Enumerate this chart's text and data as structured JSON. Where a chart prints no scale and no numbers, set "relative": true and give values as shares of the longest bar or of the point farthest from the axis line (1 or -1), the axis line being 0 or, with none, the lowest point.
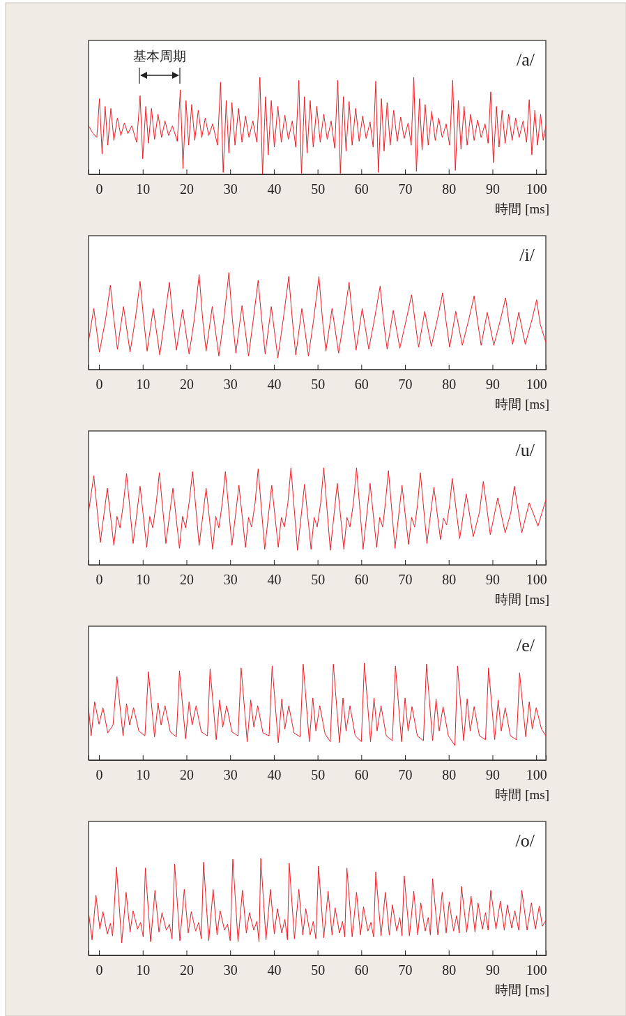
{
  "chart_data": [
    {
      "type": "line",
      "title": "/a/",
      "xlabel": "時間 [ms]",
      "relative": true,
      "color": "#ee1c25",
      "xlim": [
        -2.4,
        102.2
      ],
      "xticks": [
        0,
        10,
        20,
        30,
        40,
        50,
        60,
        70,
        80,
        90,
        100
      ],
      "annotations": [
        "基本周期"
      ],
      "x": [
        -2.4,
        -1.5,
        -0.5,
        0.1,
        0.7,
        1.4,
        2.0,
        2.7,
        3.4,
        4.2,
        5.0,
        5.8,
        6.6,
        7.5,
        8.6,
        9.4,
        10.0,
        10.7,
        11.3,
        12.0,
        12.7,
        13.5,
        14.3,
        15.1,
        15.9,
        16.8,
        17.9,
        18.6,
        19.2,
        19.9,
        20.5,
        21.2,
        21.9,
        22.7,
        23.5,
        24.3,
        25.1,
        26.0,
        27.1,
        27.8,
        28.4,
        29.1,
        29.7,
        30.4,
        31.1,
        31.9,
        32.7,
        33.5,
        34.3,
        35.2,
        36.1,
        36.8,
        37.4,
        38.1,
        38.7,
        39.4,
        40.1,
        40.9,
        41.7,
        42.5,
        43.3,
        44.2,
        45.0,
        45.7,
        46.3,
        47.0,
        47.6,
        48.3,
        49.0,
        49.8,
        50.6,
        51.4,
        52.2,
        53.1,
        53.9,
        54.6,
        55.2,
        55.9,
        56.5,
        57.2,
        57.9,
        58.7,
        59.5,
        60.3,
        61.1,
        62.0,
        62.7,
        63.3,
        63.9,
        64.6,
        65.2,
        65.9,
        66.6,
        67.4,
        68.2,
        69.0,
        69.8,
        70.7,
        71.4,
        72.0,
        72.6,
        73.3,
        73.9,
        74.6,
        75.3,
        76.1,
        76.9,
        77.7,
        78.5,
        79.4,
        80.2,
        80.9,
        81.5,
        82.2,
        82.8,
        83.5,
        84.2,
        85.0,
        85.8,
        86.6,
        87.4,
        88.3,
        89.0,
        89.6,
        90.2,
        90.9,
        91.5,
        92.2,
        92.9,
        93.7,
        94.5,
        95.3,
        96.1,
        97.0,
        97.8,
        98.4,
        99.0,
        99.7,
        100.3,
        101.0,
        101.6,
        102.2
      ],
      "values": [
        0.5,
        0.43,
        0.38,
        0.78,
        0.21,
        0.7,
        0.3,
        0.68,
        0.35,
        0.58,
        0.4,
        0.53,
        0.42,
        0.5,
        0.33,
        0.81,
        0.16,
        0.7,
        0.32,
        0.68,
        0.36,
        0.62,
        0.38,
        0.55,
        0.4,
        0.5,
        0.34,
        0.87,
        0.06,
        0.76,
        0.3,
        0.72,
        0.35,
        0.66,
        0.38,
        0.58,
        0.4,
        0.52,
        0.3,
        0.95,
        0.02,
        0.76,
        0.22,
        0.74,
        0.3,
        0.68,
        0.33,
        0.6,
        0.38,
        0.55,
        0.33,
        1,
        0,
        0.8,
        0.2,
        0.76,
        0.28,
        0.7,
        0.33,
        0.61,
        0.36,
        0.55,
        0.28,
        0.97,
        0.01,
        0.8,
        0.22,
        0.76,
        0.28,
        0.7,
        0.33,
        0.62,
        0.36,
        0.55,
        0.27,
        0.97,
        0.01,
        0.8,
        0.24,
        0.75,
        0.3,
        0.68,
        0.34,
        0.6,
        0.37,
        0.54,
        0.28,
        0.96,
        0.02,
        0.78,
        0.24,
        0.74,
        0.3,
        0.66,
        0.34,
        0.59,
        0.37,
        0.53,
        0.3,
        1,
        0.03,
        0.78,
        0.25,
        0.72,
        0.3,
        0.65,
        0.35,
        0.58,
        0.38,
        0.52,
        0.3,
        0.97,
        0.04,
        0.76,
        0.26,
        0.7,
        0.3,
        0.62,
        0.35,
        0.56,
        0.38,
        0.52,
        0.32,
        0.85,
        0.12,
        0.7,
        0.28,
        0.66,
        0.32,
        0.62,
        0.35,
        0.58,
        0.38,
        0.55,
        0.33,
        0.77,
        0.2,
        0.66,
        0.3,
        0.62,
        0.35,
        0.5
      ]
    },
    {
      "type": "line",
      "title": "/i/",
      "xlabel": "時間 [ms]",
      "relative": true,
      "color": "#ee1c25",
      "xlim": [
        -2.4,
        102.2
      ],
      "xticks": [
        0,
        10,
        20,
        30,
        40,
        50,
        60,
        70,
        80,
        90,
        100
      ],
      "x": [
        -2.4,
        -1.2,
        0.1,
        1.5,
        2.6,
        3.4,
        4.2,
        5.6,
        7.1,
        8.3,
        9.4,
        10.2,
        11.0,
        12.4,
        13.9,
        15.0,
        16.1,
        16.9,
        17.7,
        19.1,
        20.6,
        21.8,
        22.9,
        23.7,
        24.5,
        25.9,
        27.4,
        28.6,
        29.7,
        30.5,
        31.3,
        32.7,
        34.2,
        35.3,
        36.4,
        37.2,
        38.0,
        39.4,
        40.9,
        42.2,
        43.4,
        44.2,
        45.0,
        46.4,
        47.9,
        49.1,
        50.3,
        51.1,
        51.9,
        53.3,
        54.8,
        56.0,
        57.2,
        58.0,
        58.8,
        60.2,
        61.7,
        63.0,
        64.3,
        65.1,
        65.9,
        67.3,
        68.8,
        70.3,
        71.5,
        72.3,
        73.1,
        74.5,
        76.0,
        77.4,
        78.6,
        79.4,
        80.2,
        81.6,
        83.1,
        84.6,
        85.8,
        86.6,
        87.4,
        88.8,
        90.3,
        91.8,
        93.0,
        93.8,
        94.6,
        96.0,
        97.5,
        99.0,
        100.1,
        100.9,
        102.2
      ],
      "values": [
        0.29,
        0.63,
        0.18,
        0.52,
        0.87,
        0.52,
        0.21,
        0.65,
        0.18,
        0.52,
        0.91,
        0.52,
        0.19,
        0.63,
        0.15,
        0.52,
        0.9,
        0.52,
        0.2,
        0.62,
        0.16,
        0.52,
        0.98,
        0.52,
        0.19,
        0.65,
        0.14,
        0.54,
        1,
        0.52,
        0.17,
        0.66,
        0.14,
        0.52,
        0.92,
        0.52,
        0.16,
        0.65,
        0.12,
        0.54,
        0.96,
        0.52,
        0.15,
        0.63,
        0.14,
        0.52,
        0.96,
        0.52,
        0.19,
        0.63,
        0.17,
        0.52,
        0.9,
        0.52,
        0.2,
        0.63,
        0.21,
        0.52,
        0.86,
        0.49,
        0.21,
        0.61,
        0.22,
        0.52,
        0.77,
        0.49,
        0.23,
        0.6,
        0.24,
        0.52,
        0.79,
        0.49,
        0.23,
        0.6,
        0.25,
        0.52,
        0.76,
        0.49,
        0.25,
        0.59,
        0.25,
        0.51,
        0.74,
        0.47,
        0.26,
        0.59,
        0.26,
        0.51,
        0.72,
        0.47,
        0.28
      ]
    },
    {
      "type": "line",
      "title": "/u/",
      "xlabel": "時間 [ms]",
      "relative": true,
      "color": "#ee1c25",
      "xlim": [
        -2.4,
        102.2
      ],
      "xticks": [
        0,
        10,
        20,
        30,
        40,
        50,
        60,
        70,
        80,
        90,
        100
      ],
      "x": [
        -2.4,
        -1.2,
        0.3,
        1.9,
        3.4,
        4.1,
        4.8,
        5.6,
        6.3,
        7.8,
        9.4,
        10.9,
        11.6,
        12.3,
        13.1,
        13.8,
        15.3,
        16.9,
        18.4,
        19.1,
        19.8,
        20.6,
        21.4,
        22.9,
        24.5,
        26.0,
        26.7,
        27.4,
        28.2,
        28.9,
        30.4,
        32.0,
        33.5,
        34.2,
        34.9,
        35.7,
        36.4,
        37.9,
        39.5,
        41.0,
        41.7,
        42.4,
        43.2,
        43.9,
        45.4,
        47.0,
        48.5,
        49.2,
        49.9,
        50.7,
        51.4,
        52.9,
        54.5,
        56.0,
        56.7,
        57.4,
        58.2,
        58.9,
        60.4,
        62.0,
        63.5,
        64.2,
        64.9,
        65.5,
        66.2,
        67.7,
        69.3,
        70.8,
        71.5,
        72.2,
        72.9,
        73.5,
        75.0,
        76.6,
        78.1,
        78.8,
        79.5,
        80.2,
        80.8,
        82.5,
        84.0,
        85.6,
        87.0,
        87.9,
        89.5,
        91.2,
        92.9,
        94.2,
        95.0,
        96.7,
        98.4,
        100.4,
        102.2
      ],
      "values": [
        0.54,
        0.92,
        0.23,
        0.79,
        0.2,
        0.5,
        0.38,
        0.64,
        0.94,
        0.22,
        0.81,
        0.18,
        0.5,
        0.38,
        0.64,
        0.95,
        0.22,
        0.79,
        0.17,
        0.5,
        0.38,
        0.64,
        0.96,
        0.2,
        0.79,
        0.16,
        0.5,
        0.38,
        0.64,
        0.96,
        0.2,
        0.82,
        0.18,
        0.49,
        0.39,
        0.64,
        0.99,
        0.16,
        0.82,
        0.18,
        0.49,
        0.39,
        0.64,
        1,
        0.15,
        0.83,
        0.16,
        0.49,
        0.39,
        0.64,
        1,
        0.15,
        0.84,
        0.16,
        0.49,
        0.39,
        0.64,
        1,
        0.16,
        0.84,
        0.18,
        0.49,
        0.39,
        0.64,
        0.97,
        0.17,
        0.82,
        0.21,
        0.49,
        0.39,
        0.64,
        0.95,
        0.22,
        0.8,
        0.26,
        0.48,
        0.41,
        0.62,
        0.89,
        0.27,
        0.73,
        0.29,
        0.54,
        0.86,
        0.31,
        0.69,
        0.33,
        0.54,
        0.81,
        0.33,
        0.64,
        0.4,
        0.67
      ]
    },
    {
      "type": "line",
      "title": "/e/",
      "xlabel": "時間 [ms]",
      "relative": true,
      "color": "#ee1c25",
      "xlim": [
        -2.4,
        102.2
      ],
      "xticks": [
        0,
        10,
        20,
        30,
        40,
        50,
        60,
        70,
        80,
        90,
        100
      ],
      "x": [
        -2.4,
        -1.8,
        -1.0,
        0.0,
        0.9,
        2.0,
        3.2,
        4.1,
        5.5,
        6.3,
        7.0,
        7.9,
        9.1,
        10.5,
        11.3,
        12.7,
        13.5,
        14.2,
        15.1,
        16.3,
        17.7,
        18.4,
        19.8,
        20.6,
        21.3,
        22.2,
        23.4,
        24.8,
        25.4,
        26.8,
        27.6,
        28.3,
        29.2,
        30.4,
        31.8,
        32.5,
        33.9,
        34.7,
        35.4,
        36.3,
        37.5,
        38.9,
        39.6,
        41.0,
        41.8,
        42.5,
        43.4,
        44.6,
        46.0,
        46.7,
        48.1,
        48.9,
        49.6,
        50.5,
        51.7,
        52.9,
        53.6,
        55.0,
        55.8,
        56.5,
        57.4,
        58.6,
        60.0,
        60.7,
        62.1,
        62.9,
        63.6,
        64.5,
        65.7,
        67.1,
        67.8,
        69.2,
        70.0,
        70.7,
        71.6,
        72.8,
        74.2,
        74.9,
        76.3,
        77.1,
        77.8,
        78.7,
        79.9,
        81.4,
        82.0,
        83.4,
        84.2,
        84.9,
        85.8,
        87.0,
        88.4,
        89.1,
        90.5,
        91.3,
        92.0,
        92.9,
        94.1,
        95.5,
        96.2,
        97.6,
        98.4,
        99.1,
        100.0,
        101.2,
        102.2
      ],
      "values": [
        0.54,
        0.25,
        0.6,
        0.37,
        0.54,
        0.28,
        0.36,
        0.86,
        0.25,
        0.58,
        0.36,
        0.54,
        0.3,
        0.25,
        0.91,
        0.24,
        0.59,
        0.36,
        0.56,
        0.29,
        0.24,
        0.92,
        0.22,
        0.6,
        0.36,
        0.56,
        0.29,
        0.25,
        0.94,
        0.21,
        0.62,
        0.34,
        0.56,
        0.29,
        0.25,
        0.95,
        0.19,
        0.62,
        0.34,
        0.56,
        0.28,
        0.25,
        0.97,
        0.18,
        0.63,
        0.32,
        0.56,
        0.28,
        0.24,
        0.99,
        0.19,
        0.64,
        0.3,
        0.56,
        0.27,
        0.19,
        0.99,
        0.18,
        0.64,
        0.3,
        0.56,
        0.25,
        0.19,
        1,
        0.19,
        0.64,
        0.3,
        0.56,
        0.25,
        0.2,
        0.97,
        0.19,
        0.64,
        0.3,
        0.55,
        0.25,
        0.2,
        0.99,
        0.2,
        0.63,
        0.3,
        0.55,
        0.25,
        0.15,
        0.97,
        0.2,
        0.63,
        0.3,
        0.55,
        0.25,
        0.21,
        0.95,
        0.21,
        0.62,
        0.3,
        0.54,
        0.25,
        0.21,
        0.9,
        0.24,
        0.6,
        0.32,
        0.54,
        0.32,
        0.25
      ]
    },
    {
      "type": "line",
      "title": "/o/",
      "xlabel": "時間 [ms]",
      "relative": true,
      "color": "#ee1c25",
      "xlim": [
        -2.4,
        102.2
      ],
      "xticks": [
        0,
        10,
        20,
        30,
        40,
        50,
        60,
        70,
        80,
        90,
        100
      ],
      "x": [
        -2.3,
        -1.6,
        -0.7,
        0.2,
        0.9,
        1.9,
        2.6,
        3.1,
        4.0,
        5.2,
        6.2,
        7.1,
        7.8,
        8.8,
        9.5,
        10.1,
        10.6,
        11.8,
        12.8,
        13.7,
        14.4,
        15.4,
        16.1,
        16.7,
        17.3,
        18.5,
        19.5,
        20.4,
        21.1,
        22.1,
        22.8,
        23.4,
        23.9,
        25.1,
        26.1,
        27.0,
        27.7,
        28.7,
        29.4,
        30.0,
        30.6,
        31.8,
        32.8,
        33.7,
        34.4,
        35.4,
        36.1,
        36.6,
        37.0,
        38.2,
        39.2,
        40.1,
        40.8,
        41.8,
        42.5,
        43.1,
        43.5,
        44.7,
        45.7,
        46.6,
        47.3,
        48.3,
        49.0,
        49.6,
        50.2,
        51.4,
        52.4,
        53.3,
        54.0,
        55.0,
        55.7,
        56.2,
        56.7,
        57.9,
        58.9,
        59.8,
        60.5,
        61.5,
        62.2,
        62.8,
        63.3,
        64.5,
        65.5,
        66.4,
        67.1,
        68.1,
        68.8,
        69.3,
        69.8,
        71.0,
        72.0,
        72.9,
        73.6,
        74.6,
        75.3,
        75.8,
        76.3,
        77.5,
        78.5,
        79.4,
        80.1,
        81.1,
        81.8,
        82.4,
        82.9,
        84.1,
        85.1,
        86.0,
        86.7,
        87.7,
        88.4,
        89.0,
        89.6,
        90.8,
        91.8,
        92.7,
        93.4,
        94.4,
        95.1,
        96.0,
        96.7,
        97.9,
        98.9,
        99.8,
        100.7,
        101.4,
        102.2
      ],
      "values": [
        0.41,
        0.16,
        0.62,
        0.27,
        0.45,
        0.22,
        0.33,
        0.2,
        0.91,
        0.13,
        0.65,
        0.24,
        0.46,
        0.27,
        0.34,
        0.19,
        0.9,
        0.14,
        0.67,
        0.24,
        0.44,
        0.26,
        0.32,
        0.17,
        0.94,
        0.15,
        0.68,
        0.23,
        0.45,
        0.25,
        0.34,
        0.17,
        0.96,
        0.15,
        0.68,
        0.21,
        0.46,
        0.26,
        0.32,
        0.15,
        0.99,
        0.14,
        0.67,
        0.23,
        0.44,
        0.26,
        0.35,
        0.14,
        1,
        0.16,
        0.68,
        0.22,
        0.48,
        0.23,
        0.37,
        0.16,
        0.95,
        0.17,
        0.68,
        0.21,
        0.48,
        0.21,
        0.35,
        0.17,
        0.92,
        0.18,
        0.66,
        0.21,
        0.49,
        0.23,
        0.35,
        0.19,
        0.9,
        0.19,
        0.65,
        0.21,
        0.5,
        0.25,
        0.34,
        0.19,
        0.86,
        0.2,
        0.65,
        0.21,
        0.52,
        0.25,
        0.39,
        0.2,
        0.82,
        0.2,
        0.66,
        0.21,
        0.54,
        0.25,
        0.39,
        0.21,
        0.79,
        0.21,
        0.65,
        0.23,
        0.55,
        0.25,
        0.41,
        0.23,
        0.71,
        0.24,
        0.61,
        0.24,
        0.54,
        0.27,
        0.44,
        0.26,
        0.67,
        0.27,
        0.56,
        0.26,
        0.52,
        0.28,
        0.46,
        0.26,
        0.67,
        0.26,
        0.54,
        0.27,
        0.51,
        0.3,
        0.36
      ]
    }
  ]
}
